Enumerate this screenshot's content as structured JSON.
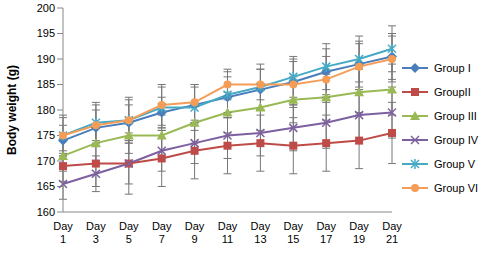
{
  "chart_data": {
    "type": "line",
    "y_label": "Body weight (g)",
    "categories": [
      "Day 1",
      "Day 3",
      "Day 5",
      "Day 7",
      "Day 9",
      "Day 11",
      "Day 13",
      "Day 15",
      "Day 17",
      "Day 19",
      "Day 21"
    ],
    "ylim": [
      160,
      200
    ],
    "yticks": [
      160,
      165,
      170,
      175,
      180,
      185,
      190,
      195,
      200
    ],
    "grid": false,
    "legend": "right",
    "series": [
      {
        "name": "Group I",
        "color": "#4a7ebb",
        "marker": "diamond",
        "values": [
          174,
          176.5,
          177.5,
          179.5,
          181,
          182.5,
          184,
          185.5,
          187.5,
          189,
          190.5
        ],
        "errors": [
          3,
          3.5,
          3.5,
          3,
          3.5,
          4,
          4,
          4.5,
          4.5,
          4.5,
          4.5
        ]
      },
      {
        "name": "GroupII",
        "color": "#be4b48",
        "marker": "square",
        "values": [
          169,
          169.5,
          169.5,
          170.5,
          172,
          173,
          173.5,
          173,
          173.5,
          174,
          175.5
        ],
        "errors": [
          3,
          4.5,
          6,
          5.5,
          5.5,
          5.5,
          5.5,
          5.5,
          5.5,
          5.5,
          6
        ]
      },
      {
        "name": "Group III",
        "color": "#98b954",
        "marker": "triangle",
        "values": [
          171,
          173.5,
          175,
          175,
          177.5,
          179.5,
          180.5,
          182,
          182.5,
          183.5,
          184
        ],
        "errors": [
          3,
          3.5,
          3.5,
          4,
          4,
          4,
          4.5,
          4.5,
          4.5,
          4.5,
          5
        ]
      },
      {
        "name": "Group IV",
        "color": "#7d60a0",
        "marker": "cross",
        "values": [
          165.5,
          167.5,
          169.5,
          172,
          173.5,
          175,
          175.5,
          176.5,
          177.5,
          179,
          179.5
        ],
        "errors": [
          3,
          3.5,
          4,
          4,
          4,
          4.5,
          4.5,
          4.5,
          5,
          5,
          5
        ]
      },
      {
        "name": "Group V",
        "color": "#46aac5",
        "marker": "star",
        "values": [
          175,
          177.5,
          178,
          180.5,
          180.5,
          183,
          184.5,
          186.5,
          188.5,
          190,
          192
        ],
        "errors": [
          3.5,
          4,
          4,
          4,
          4.5,
          4.5,
          4.5,
          4,
          4.5,
          4.5,
          4.5
        ]
      },
      {
        "name": "Group VI",
        "color": "#f59d56",
        "marker": "circle",
        "values": [
          175,
          177,
          178,
          181,
          181.5,
          185,
          185,
          185,
          186,
          188.5,
          190
        ],
        "errors": [
          4,
          4,
          4.5,
          4,
          3.5,
          3,
          3,
          4.5,
          4.5,
          4.5,
          4.5
        ]
      }
    ]
  }
}
